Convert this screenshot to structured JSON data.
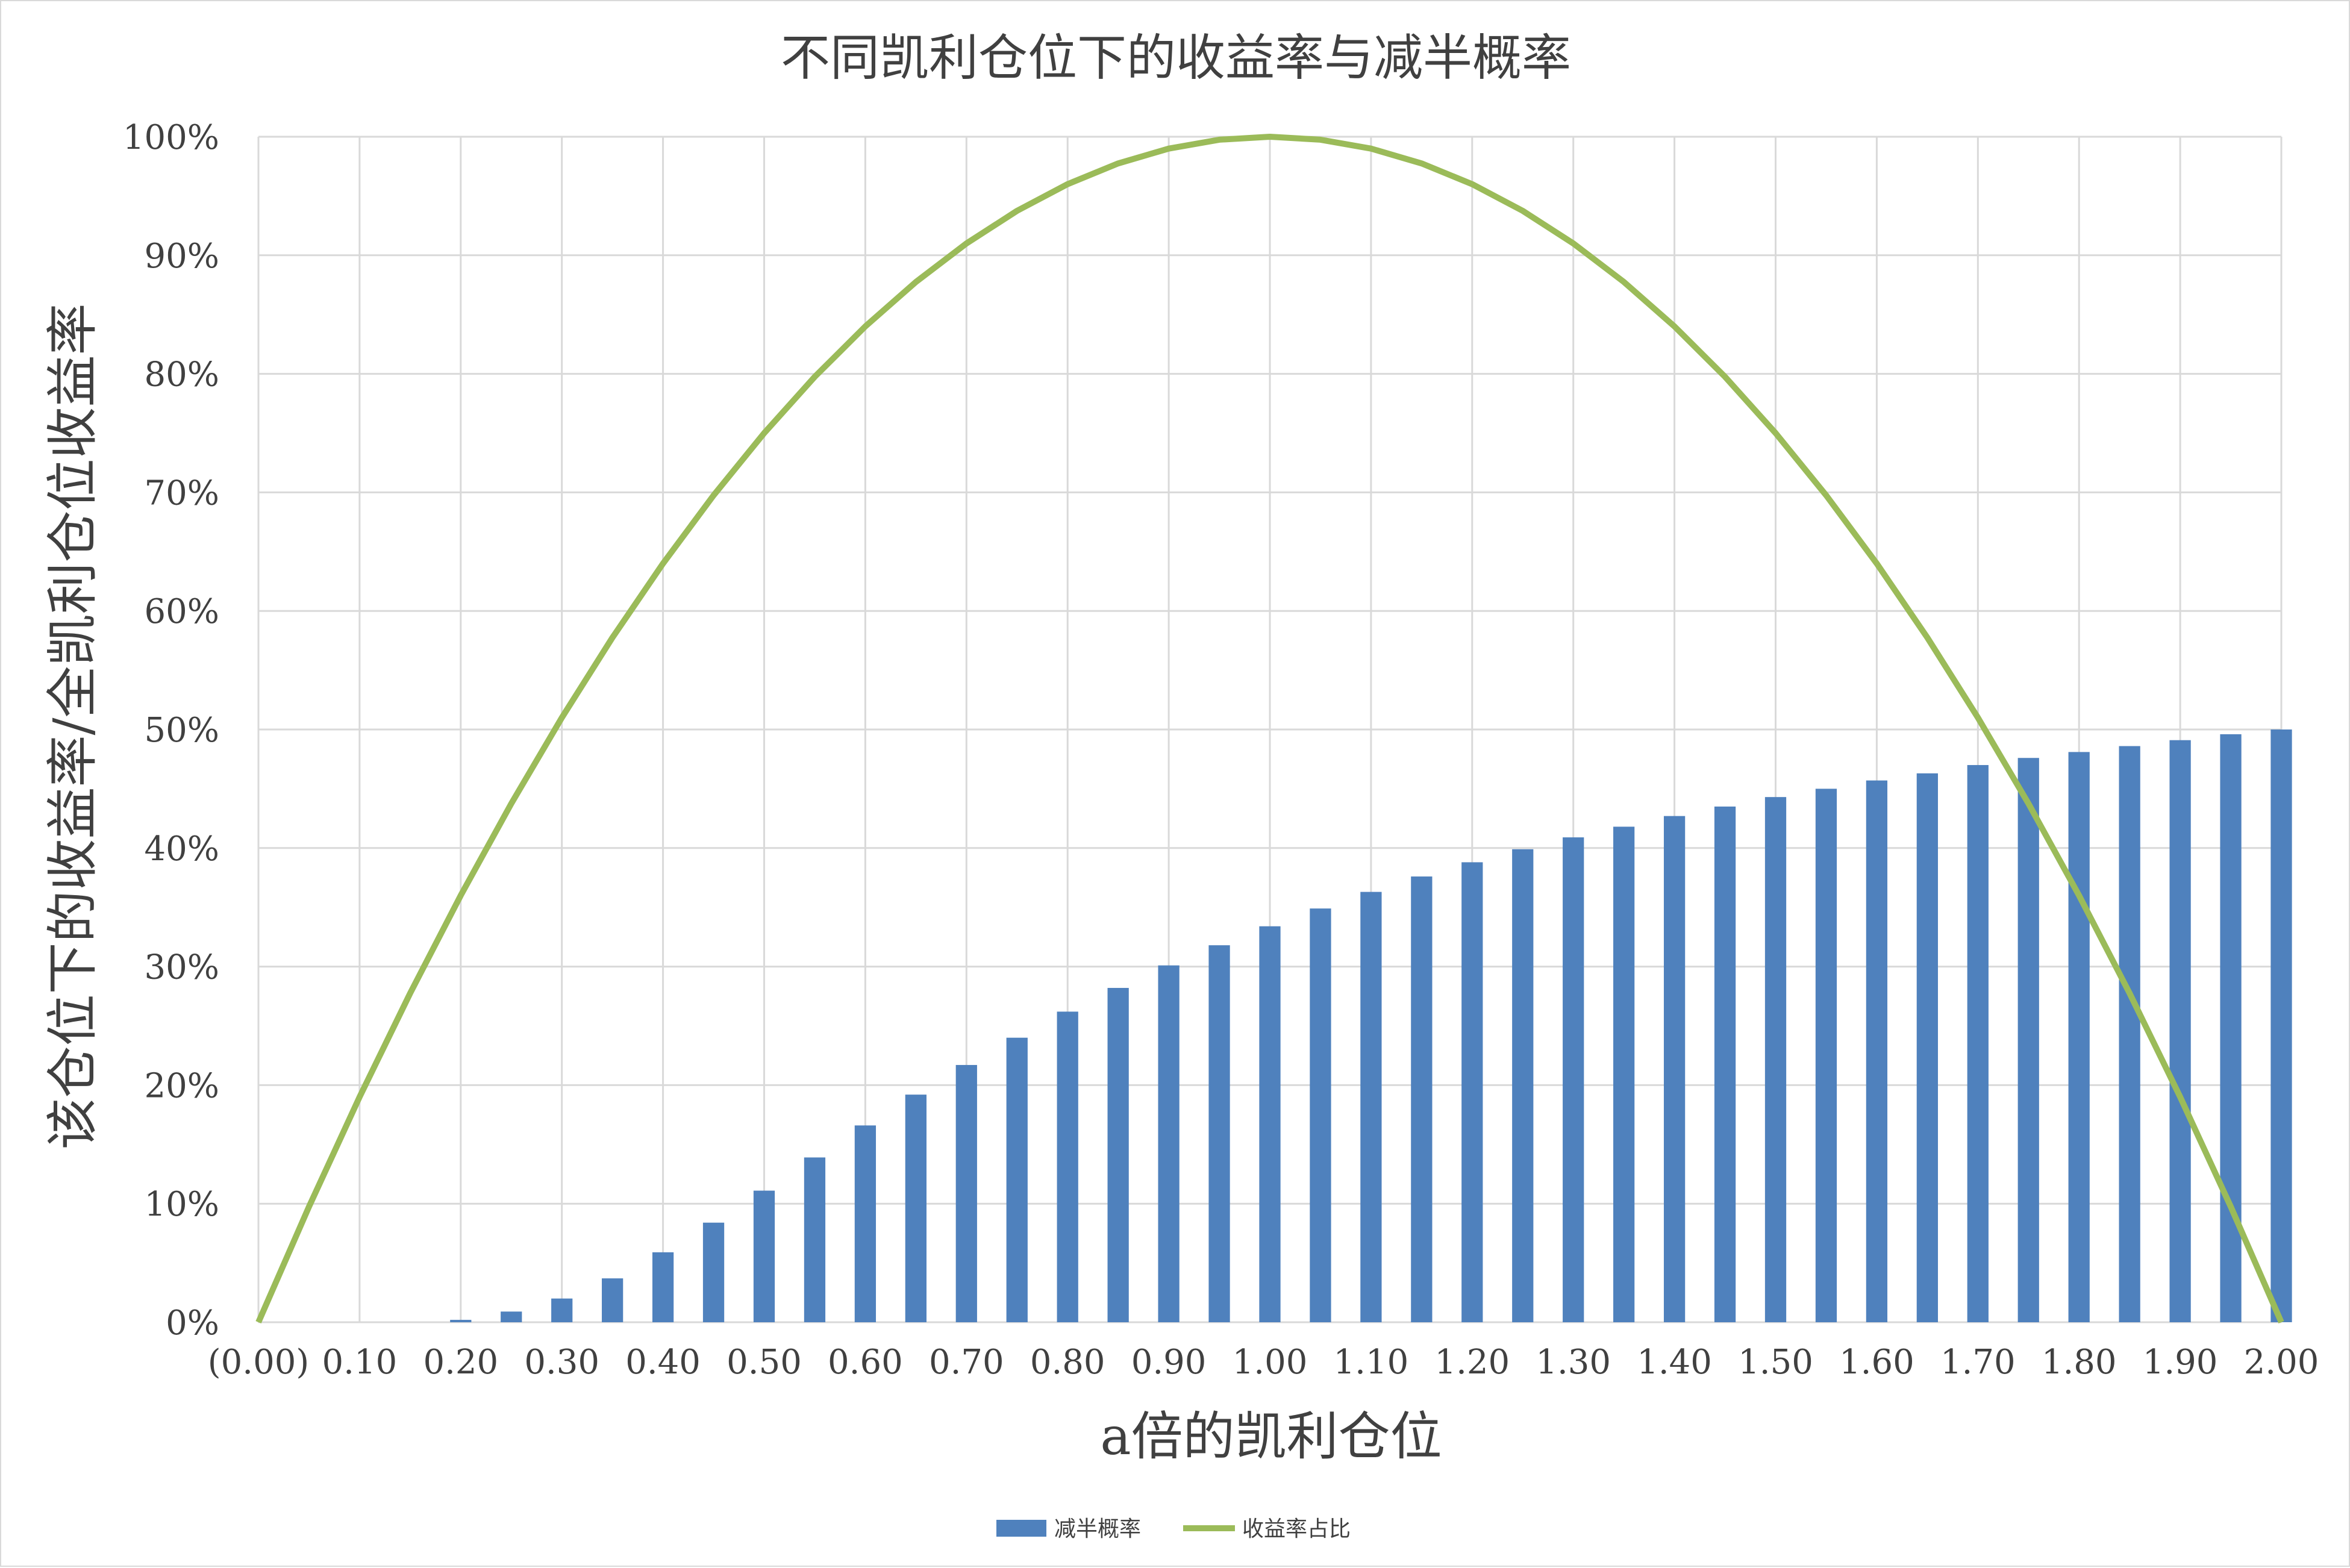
{
  "chart_data": {
    "type": "bar+line",
    "title": "不同凯利仓位下的收益率与减半概率",
    "xlabel": "a倍的凯利仓位",
    "ylabel": "该仓位下的收益率/全凯利仓位收益率",
    "ylim": [
      0,
      1
    ],
    "xlim": [
      0,
      2
    ],
    "grid": true,
    "legend_position": "bottom",
    "y_ticks": [
      "0%",
      "10%",
      "20%",
      "30%",
      "40%",
      "50%",
      "60%",
      "70%",
      "80%",
      "90%",
      "100%"
    ],
    "x_ticks": [
      "(0.00)",
      "0.10",
      "0.20",
      "0.30",
      "0.40",
      "0.50",
      "0.60",
      "0.70",
      "0.80",
      "0.90",
      "1.00",
      "1.10",
      "1.20",
      "1.30",
      "1.40",
      "1.50",
      "1.60",
      "1.70",
      "1.80",
      "1.90",
      "2.00"
    ],
    "x": [
      0.0,
      0.05,
      0.1,
      0.15,
      0.2,
      0.25,
      0.3,
      0.35,
      0.4,
      0.45,
      0.5,
      0.55,
      0.6,
      0.65,
      0.7,
      0.75,
      0.8,
      0.85,
      0.9,
      0.95,
      1.0,
      1.05,
      1.1,
      1.15,
      1.2,
      1.25,
      1.3,
      1.35,
      1.4,
      1.45,
      1.5,
      1.55,
      1.6,
      1.65,
      1.7,
      1.75,
      1.8,
      1.85,
      1.9,
      1.95,
      2.0
    ],
    "series": [
      {
        "name": "减半概率",
        "type": "bar",
        "color": "#4f81bd",
        "values": [
          0,
          0,
          0,
          0,
          0.002,
          0.009,
          0.02,
          0.037,
          0.059,
          0.084,
          0.111,
          0.139,
          0.166,
          0.192,
          0.217,
          0.24,
          0.262,
          0.282,
          0.301,
          0.318,
          0.334,
          0.349,
          0.363,
          0.376,
          0.388,
          0.399,
          0.409,
          0.418,
          0.427,
          0.435,
          0.443,
          0.45,
          0.457,
          0.463,
          0.47,
          0.476,
          0.481,
          0.486,
          0.491,
          0.496,
          0.5
        ]
      },
      {
        "name": "收益率占比",
        "type": "line",
        "color": "#9bbb59",
        "values": [
          0,
          0.0975,
          0.19,
          0.2775,
          0.36,
          0.4375,
          0.51,
          0.5775,
          0.64,
          0.6975,
          0.75,
          0.7975,
          0.84,
          0.8775,
          0.91,
          0.9375,
          0.96,
          0.9775,
          0.99,
          0.9975,
          1.0,
          0.9975,
          0.99,
          0.9775,
          0.96,
          0.9375,
          0.91,
          0.8775,
          0.84,
          0.7975,
          0.75,
          0.6975,
          0.64,
          0.5775,
          0.51,
          0.4375,
          0.36,
          0.2775,
          0.19,
          0.0975,
          0
        ]
      }
    ]
  }
}
